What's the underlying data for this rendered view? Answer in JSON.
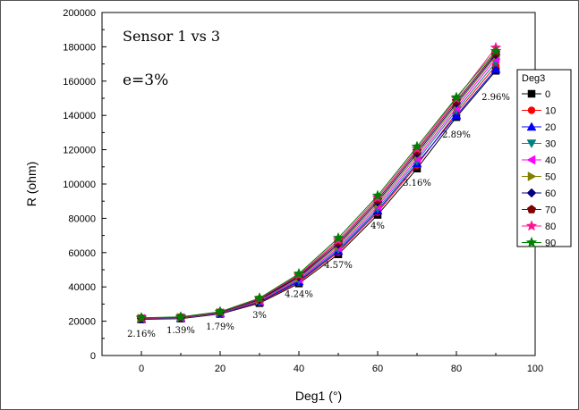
{
  "chart_data": {
    "type": "line",
    "title": "Sensor 1 vs 3",
    "subtitle": "e=3%",
    "xlabel": "Deg1 (°)",
    "ylabel": "R (ohm)",
    "xlim": [
      -10,
      100
    ],
    "ylim": [
      0,
      200000
    ],
    "xticks": [
      0,
      20,
      40,
      60,
      80,
      100
    ],
    "yticks": [
      0,
      20000,
      40000,
      60000,
      80000,
      100000,
      120000,
      140000,
      160000,
      180000,
      200000
    ],
    "legend_title": "Deg3",
    "legend_position": "right",
    "grid": false,
    "x": [
      0,
      10,
      20,
      30,
      40,
      50,
      60,
      70,
      80,
      90
    ],
    "series": [
      {
        "name": "0",
        "color": "#000000",
        "marker": "square",
        "values": [
          21000,
          21500,
          24200,
          30500,
          42000,
          59000,
          82000,
          109000,
          139000,
          166000
        ]
      },
      {
        "name": "10",
        "color": "#ff0000",
        "marker": "circle",
        "values": [
          21200,
          21700,
          24400,
          31000,
          42800,
          60200,
          83500,
          111000,
          141500,
          169000
        ]
      },
      {
        "name": "20",
        "color": "#0000ff",
        "marker": "triangle-up",
        "values": [
          21300,
          21800,
          24500,
          31300,
          43300,
          61000,
          84500,
          112000,
          140000,
          167000
        ]
      },
      {
        "name": "30",
        "color": "#008080",
        "marker": "triangle-down",
        "values": [
          21400,
          21900,
          24700,
          31600,
          43900,
          61900,
          85700,
          113500,
          143000,
          171000
        ]
      },
      {
        "name": "40",
        "color": "#ff00ff",
        "marker": "triangle-left",
        "values": [
          21500,
          22000,
          24800,
          31900,
          44500,
          62800,
          87000,
          115000,
          144500,
          173000
        ]
      },
      {
        "name": "50",
        "color": "#808000",
        "marker": "triangle-right",
        "values": [
          21600,
          22100,
          25000,
          32300,
          45200,
          63900,
          88300,
          116600,
          146000,
          174500
        ]
      },
      {
        "name": "60",
        "color": "#000080",
        "marker": "diamond",
        "values": [
          21700,
          22200,
          25100,
          32600,
          45800,
          64900,
          89600,
          118000,
          147200,
          175500
        ]
      },
      {
        "name": "70",
        "color": "#800000",
        "marker": "pentagon",
        "values": [
          21800,
          22300,
          25200,
          32900,
          46500,
          66000,
          90800,
          119300,
          148500,
          176500
        ]
      },
      {
        "name": "80",
        "color": "#ff1493",
        "marker": "star",
        "values": [
          21900,
          22400,
          25400,
          33200,
          47000,
          67200,
          92000,
          120500,
          149800,
          179500
        ]
      },
      {
        "name": "90",
        "color": "#008000",
        "marker": "star",
        "values": [
          22000,
          22500,
          25500,
          33500,
          47700,
          68500,
          93200,
          121800,
          150500,
          177500
        ]
      }
    ],
    "annotations": [
      {
        "text": "2.16%",
        "x": 0,
        "y": 11000
      },
      {
        "text": "1.39%",
        "x": 10,
        "y": 13000
      },
      {
        "text": "1.79%",
        "x": 20,
        "y": 15000
      },
      {
        "text": "3%",
        "x": 30,
        "y": 22000
      },
      {
        "text": "4.24%",
        "x": 40,
        "y": 34000
      },
      {
        "text": "4.57%",
        "x": 50,
        "y": 51000
      },
      {
        "text": "4%",
        "x": 60,
        "y": 74000
      },
      {
        "text": "3.16%",
        "x": 70,
        "y": 99000
      },
      {
        "text": "2.89%",
        "x": 80,
        "y": 127000
      },
      {
        "text": "2.96%",
        "x": 90,
        "y": 149000
      }
    ]
  }
}
